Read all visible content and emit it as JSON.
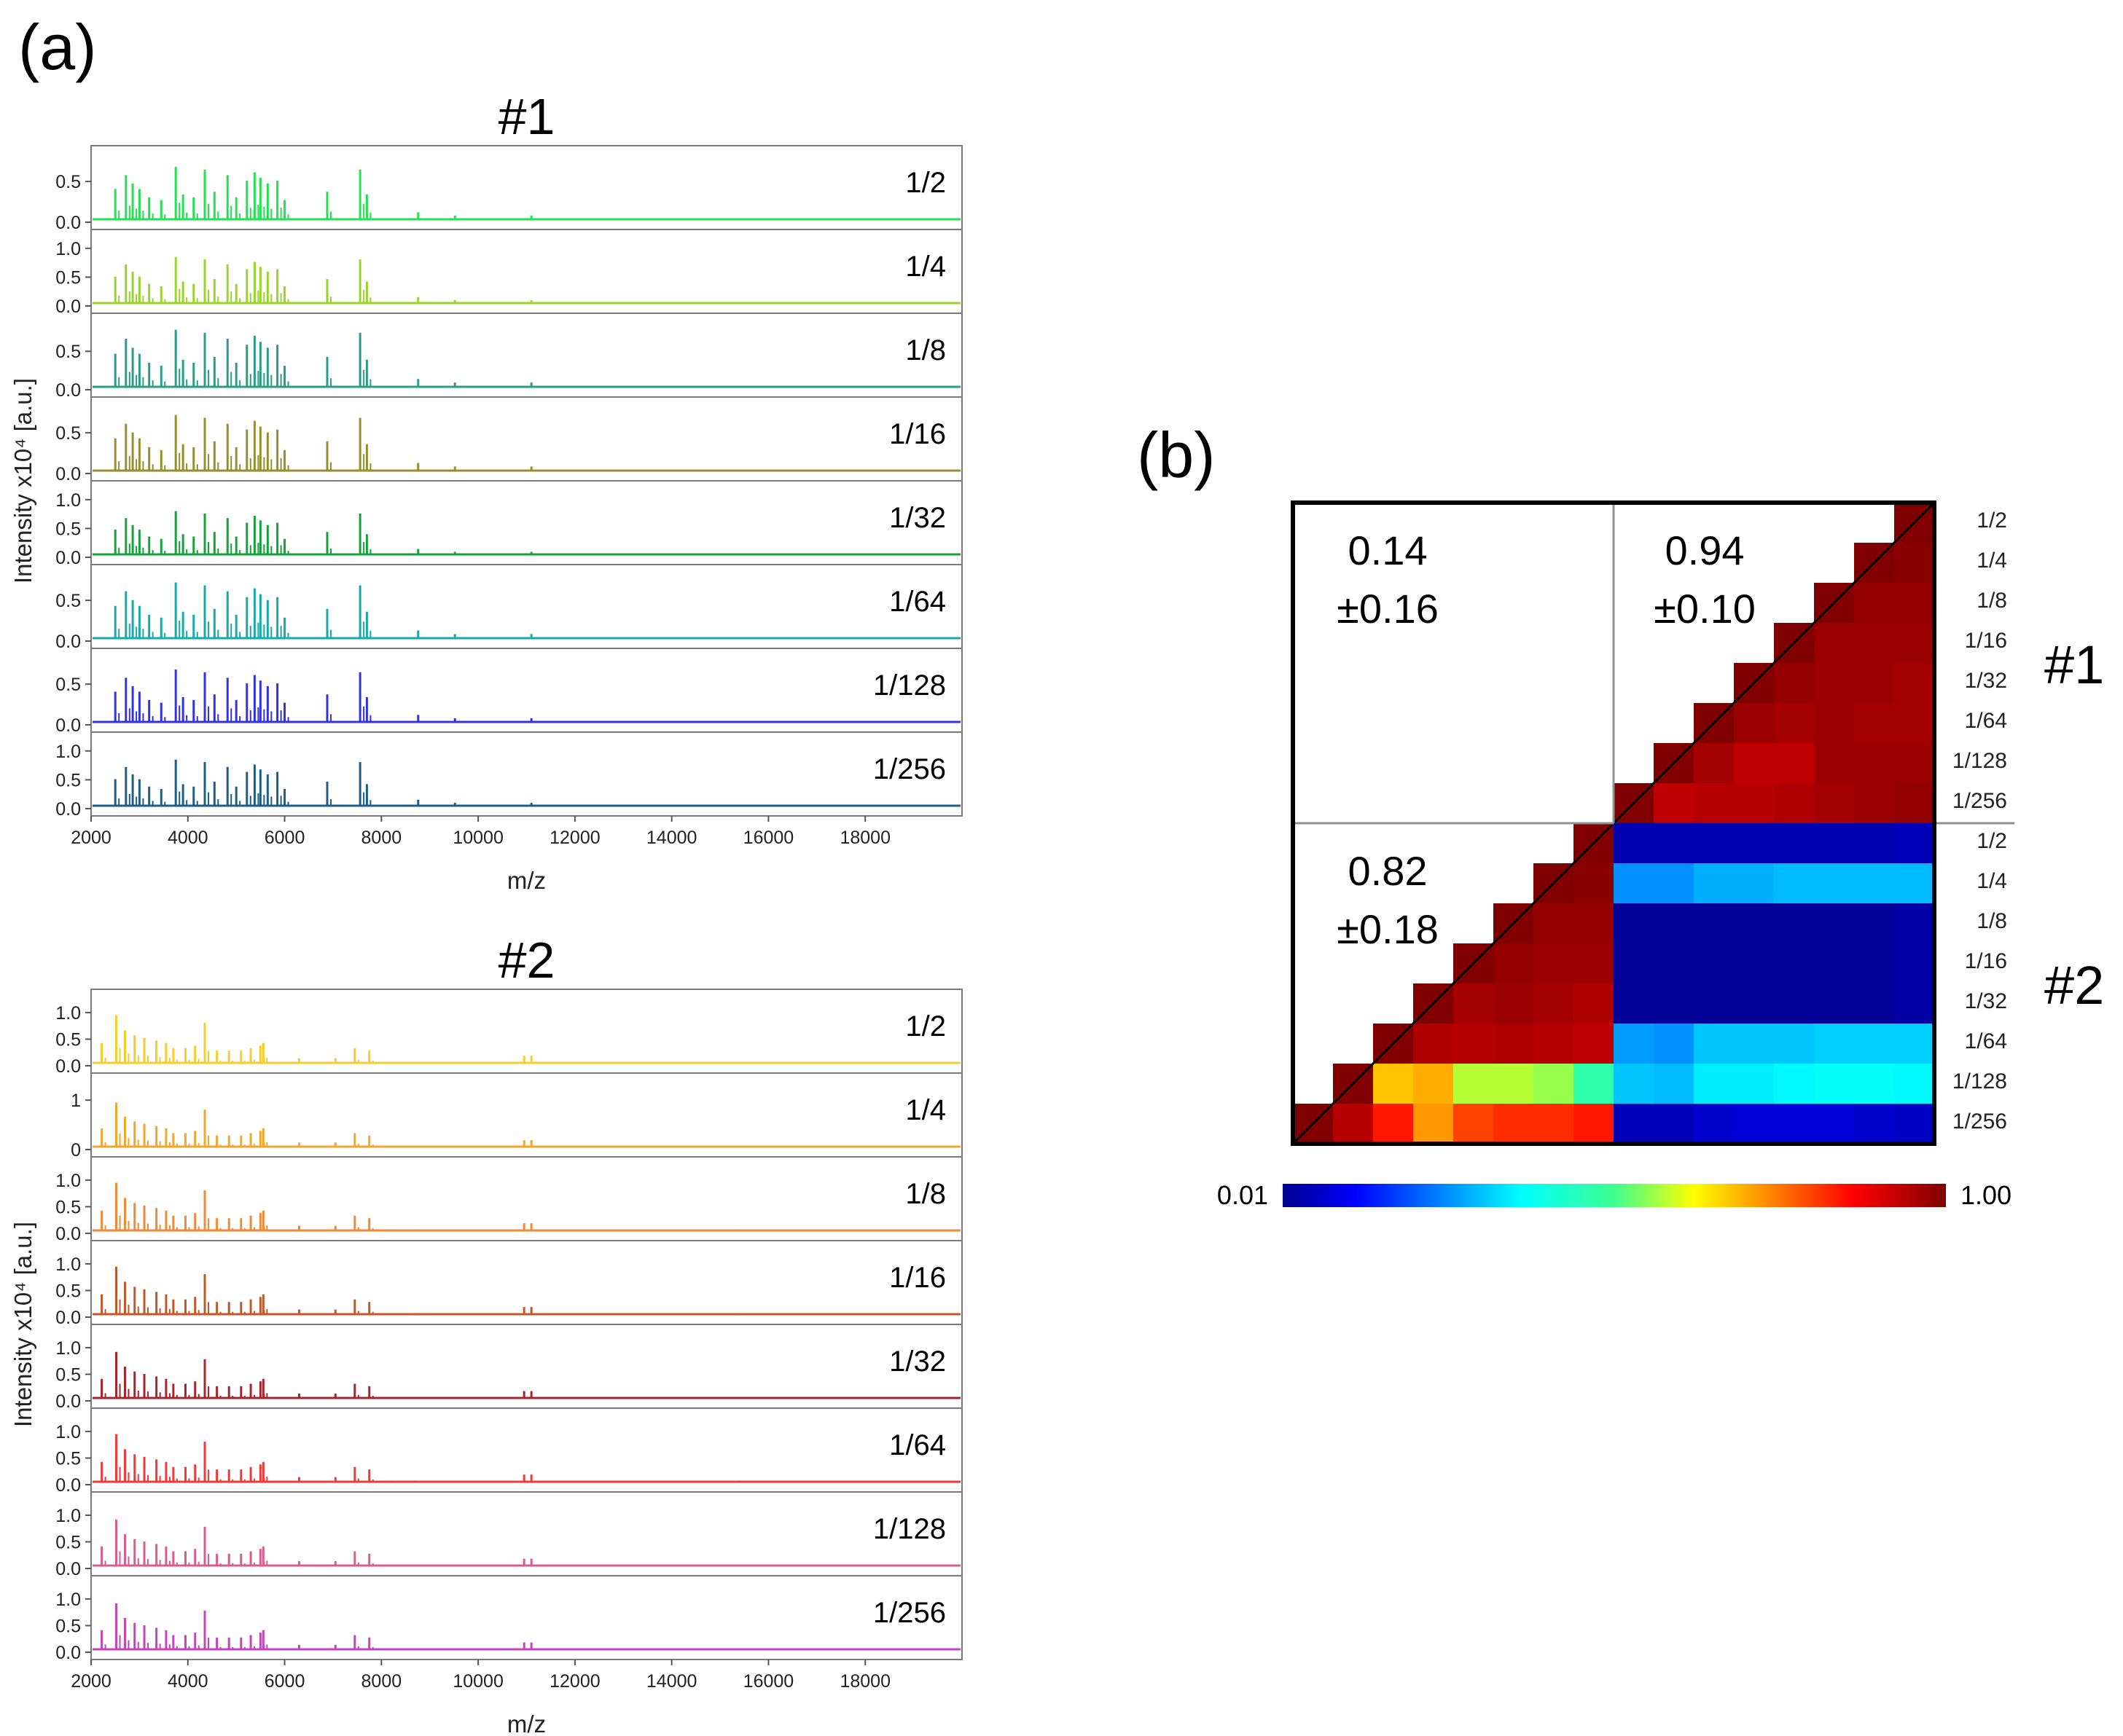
{
  "panel_labels": {
    "a": "(a)",
    "b": "(b)"
  },
  "colorbar": {
    "min_label": "0.01",
    "max_label": "1.00",
    "colormap": "jet"
  },
  "chart_data": [
    {
      "type": "line",
      "title": "#1",
      "xlabel": "m/z",
      "ylabel": "Intensity x10⁴ [a.u.]",
      "xlim": [
        2000,
        20000
      ],
      "xticks": [
        "2000",
        "4000",
        "6000",
        "8000",
        "10000",
        "12000",
        "14000",
        "16000",
        "18000"
      ],
      "peaks_mz": [
        2500,
        2720,
        2860,
        3000,
        3200,
        3450,
        3750,
        3900,
        4120,
        4350,
        4550,
        4820,
        5000,
        5220,
        5380,
        5500,
        5650,
        5850,
        6000,
        6880,
        7560,
        7700,
        8760,
        9520,
        11100,
        13100,
        15400
      ],
      "peaks_rel": [
        0.6,
        0.85,
        0.7,
        0.6,
        0.45,
        0.4,
        1.0,
        0.5,
        0.45,
        0.95,
        0.55,
        0.85,
        0.45,
        0.75,
        0.9,
        0.8,
        0.7,
        0.75,
        0.4,
        0.55,
        0.95,
        0.5,
        0.18,
        0.12,
        0.12,
        0.05,
        0.05
      ],
      "series": [
        {
          "name": "1/2",
          "color": "#22e24f",
          "peak_scale": 0.68,
          "yticks": [
            "0.0",
            "0.5"
          ],
          "ymax": 0.85
        },
        {
          "name": "1/4",
          "color": "#99d52a",
          "peak_scale": 0.85,
          "yticks": [
            "0.0",
            "0.5",
            "1.0"
          ],
          "ymax": 1.2
        },
        {
          "name": "1/8",
          "color": "#2a9e84",
          "peak_scale": 0.78,
          "yticks": [
            "0.0",
            "0.5"
          ],
          "ymax": 0.9
        },
        {
          "name": "1/16",
          "color": "#93902d",
          "peak_scale": 0.72,
          "yticks": [
            "0.0",
            "0.5"
          ],
          "ymax": 0.85
        },
        {
          "name": "1/32",
          "color": "#14a33a",
          "peak_scale": 0.8,
          "yticks": [
            "0.0",
            "0.5",
            "1.0"
          ],
          "ymax": 1.2
        },
        {
          "name": "1/64",
          "color": "#17aaa8",
          "peak_scale": 0.72,
          "yticks": [
            "0.0",
            "0.5"
          ],
          "ymax": 0.85
        },
        {
          "name": "1/128",
          "color": "#3232e2",
          "peak_scale": 0.68,
          "yticks": [
            "0.0",
            "0.5"
          ],
          "ymax": 0.85
        },
        {
          "name": "1/256",
          "color": "#1e5d86",
          "peak_scale": 0.85,
          "yticks": [
            "0.0",
            "0.5",
            "1.0"
          ],
          "ymax": 1.2
        }
      ]
    },
    {
      "type": "line",
      "title": "#2",
      "xlabel": "m/z",
      "ylabel": "Intensity x10⁴ [a.u.]",
      "xlim": [
        2000,
        20000
      ],
      "xticks": [
        "2000",
        "4000",
        "6000",
        "8000",
        "10000",
        "12000",
        "14000",
        "16000",
        "18000"
      ],
      "peaks_mz": [
        2220,
        2520,
        2700,
        2900,
        3100,
        3350,
        3550,
        3700,
        3950,
        4150,
        4350,
        4600,
        4850,
        5100,
        5300,
        5500,
        5560,
        6300,
        7050,
        7450,
        7750,
        8200,
        8700,
        10950,
        11100,
        15400
      ],
      "peaks_rel": [
        0.45,
        1.0,
        0.7,
        0.6,
        0.55,
        0.5,
        0.45,
        0.35,
        0.35,
        0.4,
        0.85,
        0.3,
        0.3,
        0.3,
        0.35,
        0.4,
        0.45,
        0.15,
        0.15,
        0.35,
        0.3,
        0.08,
        0.08,
        0.2,
        0.2,
        0.08
      ],
      "series": [
        {
          "name": "1/2",
          "color": "#f7cc2c",
          "peak_scale": 0.95,
          "yticks": [
            "0.0",
            "0.5",
            "1.0"
          ],
          "ymax": 1.3
        },
        {
          "name": "1/4",
          "color": "#f4a62c",
          "peak_scale": 0.95,
          "yticks": [
            "0",
            "1"
          ],
          "ymax": 1.4
        },
        {
          "name": "1/8",
          "color": "#f08a36",
          "peak_scale": 0.95,
          "yticks": [
            "0.0",
            "0.5",
            "1.0"
          ],
          "ymax": 1.3
        },
        {
          "name": "1/16",
          "color": "#c0582a",
          "peak_scale": 0.95,
          "yticks": [
            "0.0",
            "0.5",
            "1.0"
          ],
          "ymax": 1.3
        },
        {
          "name": "1/32",
          "color": "#a8242c",
          "peak_scale": 0.92,
          "yticks": [
            "0.0",
            "0.5",
            "1.0"
          ],
          "ymax": 1.3
        },
        {
          "name": "1/64",
          "color": "#ee3a3a",
          "peak_scale": 0.95,
          "yticks": [
            "0.0",
            "0.5",
            "1.0"
          ],
          "ymax": 1.3
        },
        {
          "name": "1/128",
          "color": "#d85c8c",
          "peak_scale": 0.92,
          "yticks": [
            "0.0",
            "0.5",
            "1.0"
          ],
          "ymax": 1.3
        },
        {
          "name": "1/256",
          "color": "#c344bb",
          "peak_scale": 0.92,
          "yticks": [
            "0.0",
            "0.5",
            "1.0"
          ],
          "ymax": 1.3
        }
      ]
    },
    {
      "type": "heatmap",
      "row_labels": [
        "1/2",
        "1/4",
        "1/8",
        "1/16",
        "1/32",
        "1/64",
        "1/128",
        "1/256",
        "1/2",
        "1/4",
        "1/8",
        "1/16",
        "1/32",
        "1/64",
        "1/128",
        "1/256"
      ],
      "group_labels": [
        "#1",
        "#2"
      ],
      "value_range": [
        0.01,
        1.0
      ],
      "annotations": [
        {
          "mean": "0.14",
          "sd": "±0.16"
        },
        {
          "mean": "0.94",
          "sd": "±0.10"
        },
        {
          "mean": "0.82",
          "sd": "±0.18"
        }
      ],
      "values": [
        [
          1.0,
          0.99,
          0.98,
          0.97,
          0.96,
          0.96,
          0.97,
          0.98,
          0.05,
          0.3,
          0.03,
          0.03,
          0.03,
          0.32,
          0.36,
          0.06
        ],
        [
          0.99,
          1.0,
          0.98,
          0.97,
          0.97,
          0.96,
          0.97,
          0.97,
          0.04,
          0.3,
          0.02,
          0.02,
          0.02,
          0.32,
          0.37,
          0.07
        ],
        [
          0.98,
          0.98,
          1.0,
          0.97,
          0.97,
          0.97,
          0.97,
          0.96,
          0.04,
          0.3,
          0.02,
          0.02,
          0.02,
          0.32,
          0.37,
          0.08
        ],
        [
          0.97,
          0.97,
          0.97,
          1.0,
          0.98,
          0.96,
          0.93,
          0.95,
          0.04,
          0.3,
          0.02,
          0.02,
          0.02,
          0.31,
          0.36,
          0.08
        ],
        [
          0.96,
          0.97,
          0.97,
          0.98,
          1.0,
          0.97,
          0.93,
          0.94,
          0.04,
          0.29,
          0.02,
          0.02,
          0.02,
          0.31,
          0.35,
          0.08
        ],
        [
          0.96,
          0.96,
          0.97,
          0.96,
          0.97,
          1.0,
          0.96,
          0.94,
          0.04,
          0.29,
          0.02,
          0.02,
          0.02,
          0.31,
          0.35,
          0.07
        ],
        [
          0.97,
          0.97,
          0.97,
          0.93,
          0.93,
          0.96,
          1.0,
          0.93,
          0.04,
          0.26,
          0.02,
          0.02,
          0.02,
          0.26,
          0.3,
          0.05
        ],
        [
          0.98,
          0.97,
          0.96,
          0.95,
          0.94,
          0.94,
          0.93,
          1.0,
          0.04,
          0.26,
          0.02,
          0.02,
          0.02,
          0.27,
          0.31,
          0.05
        ],
        [
          0.05,
          0.04,
          0.04,
          0.04,
          0.04,
          0.04,
          0.04,
          0.04,
          1.0,
          0.99,
          0.98,
          0.97,
          0.95,
          0.93,
          0.47,
          0.84
        ],
        [
          0.3,
          0.3,
          0.3,
          0.3,
          0.29,
          0.29,
          0.26,
          0.26,
          0.99,
          1.0,
          0.98,
          0.97,
          0.96,
          0.94,
          0.56,
          0.82
        ],
        [
          0.03,
          0.02,
          0.02,
          0.02,
          0.02,
          0.02,
          0.02,
          0.02,
          0.98,
          0.98,
          1.0,
          0.98,
          0.97,
          0.95,
          0.58,
          0.82
        ],
        [
          0.03,
          0.02,
          0.02,
          0.02,
          0.02,
          0.02,
          0.02,
          0.02,
          0.97,
          0.97,
          0.98,
          1.0,
          0.96,
          0.94,
          0.58,
          0.8
        ],
        [
          0.03,
          0.02,
          0.02,
          0.02,
          0.02,
          0.02,
          0.02,
          0.02,
          0.95,
          0.96,
          0.97,
          0.96,
          1.0,
          0.95,
          0.7,
          0.72
        ],
        [
          0.32,
          0.32,
          0.32,
          0.31,
          0.31,
          0.31,
          0.26,
          0.27,
          0.93,
          0.94,
          0.95,
          0.94,
          0.95,
          1.0,
          0.68,
          0.84
        ],
        [
          0.36,
          0.37,
          0.37,
          0.36,
          0.35,
          0.35,
          0.3,
          0.31,
          0.47,
          0.56,
          0.58,
          0.58,
          0.7,
          0.68,
          1.0,
          0.94
        ],
        [
          0.06,
          0.07,
          0.08,
          0.08,
          0.08,
          0.07,
          0.05,
          0.05,
          0.84,
          0.82,
          0.82,
          0.8,
          0.72,
          0.84,
          0.94,
          1.0
        ]
      ]
    }
  ]
}
